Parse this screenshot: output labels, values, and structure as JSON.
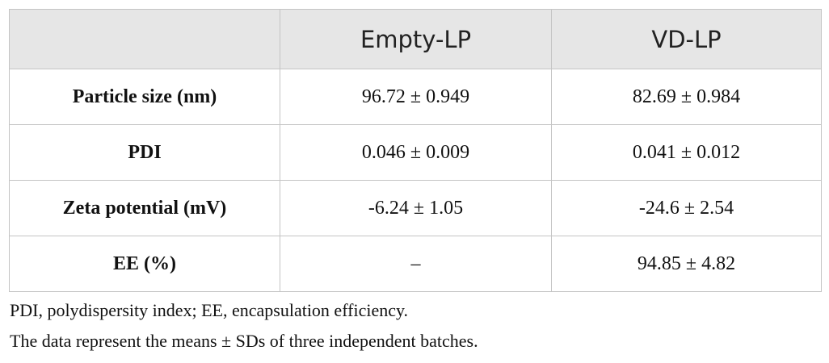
{
  "table": {
    "columns": [
      "Empty-LP",
      "VD-LP"
    ],
    "rows": [
      [
        "Particle size (nm)",
        "96.72 ± 0.949",
        "82.69 ± 0.984"
      ],
      [
        "PDI",
        "0.046 ± 0.009",
        "0.041 ± 0.012"
      ],
      [
        "Zeta potential (mV)",
        "-6.24 ± 1.05",
        "-24.6 ± 2.54"
      ],
      [
        "EE (%)",
        "–",
        "94.85 ± 4.82"
      ]
    ]
  },
  "notes": [
    "PDI, polydispersity index; EE, encapsulation efficiency.",
    "The data represent the means ± SDs of three independent batches."
  ]
}
